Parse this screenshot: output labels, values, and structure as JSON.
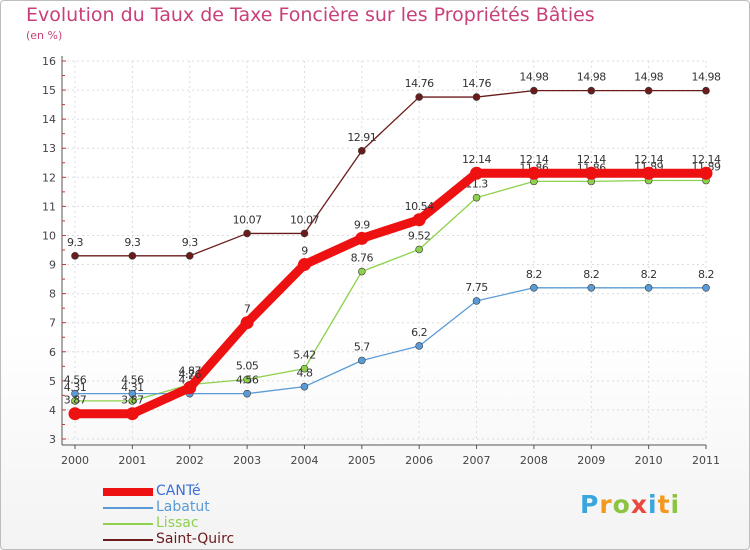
{
  "title": "Evolution du Taux de Taxe Foncière sur les Propriétés Bâties",
  "subtitle": "(en %)",
  "brand": {
    "letters": [
      "P",
      "r",
      "o",
      "x",
      "i",
      "t",
      "i"
    ],
    "colors": [
      "#3aa6dd",
      "#f39a1e",
      "#8cc43f",
      "#e9483f",
      "#3aa6dd",
      "#f39a1e",
      "#8cc43f"
    ]
  },
  "chart_data": {
    "type": "line",
    "title": "Evolution du Taux de Taxe Foncière sur les Propriétés Bâties",
    "ylabel": "(en %)",
    "ylim": [
      3,
      16
    ],
    "yticks": [
      "3",
      "4",
      "5",
      "6",
      "7",
      "8",
      "9",
      "10",
      "11",
      "12",
      "13",
      "14",
      "15",
      "16"
    ],
    "categories": [
      "2000",
      "2001",
      "2002",
      "2003",
      "2004",
      "2005",
      "2006",
      "2007",
      "2008",
      "2009",
      "2010",
      "2011"
    ],
    "series": [
      {
        "name": "Saint-Quirc",
        "color": "#6b1b1b",
        "values": [
          9.3,
          9.3,
          9.3,
          10.07,
          10.07,
          12.91,
          14.76,
          14.76,
          14.98,
          14.98,
          14.98,
          14.98
        ],
        "labels": [
          "9.3",
          "9.3",
          "9.3",
          "10.07",
          "10.07",
          "12.91",
          "14.76",
          "14.76",
          "14.98",
          "14.98",
          "14.98",
          "14.98"
        ]
      },
      {
        "name": "Lissac",
        "color": "#8fd14f",
        "values": [
          4.31,
          4.31,
          4.87,
          5.05,
          5.42,
          8.76,
          9.52,
          11.3,
          11.86,
          11.86,
          11.89,
          11.89
        ],
        "labels": [
          "4.31",
          "4.31",
          "4.87",
          "5.05",
          "5.42",
          "8.76",
          "9.52",
          "11.3",
          "11.86",
          "11.86",
          "11.89",
          "11.89"
        ]
      },
      {
        "name": "Labatut",
        "color": "#5b9bd5",
        "values": [
          4.56,
          4.56,
          4.56,
          4.56,
          4.8,
          5.7,
          6.2,
          7.75,
          8.2,
          8.2,
          8.2,
          8.2
        ],
        "labels": [
          "4.56",
          "4.56",
          "4.56",
          "4.56",
          "4.8",
          "5.7",
          "6.2",
          "7.75",
          "8.2",
          "8.2",
          "8.2",
          "8.2"
        ]
      },
      {
        "name": "CANTé",
        "color": "#ee1111",
        "values": [
          3.87,
          3.87,
          4.76,
          7.0,
          9.0,
          9.9,
          10.54,
          12.14,
          12.14,
          12.14,
          12.14,
          12.14
        ],
        "labels": [
          "3.87",
          "3.87",
          "4.76",
          "7",
          "9",
          "9.9",
          "10.54",
          "12.14",
          "12.14",
          "12.14",
          "12.14",
          "12.14"
        ]
      }
    ]
  },
  "legend": [
    {
      "label": "CANTé",
      "color": "#ee1111",
      "thick": true
    },
    {
      "label": "Labatut",
      "color": "#5b9bd5",
      "thick": false
    },
    {
      "label": "Lissac",
      "color": "#8fd14f",
      "thick": false
    },
    {
      "label": "Saint-Quirc",
      "color": "#6b1b1b",
      "thick": false
    }
  ]
}
